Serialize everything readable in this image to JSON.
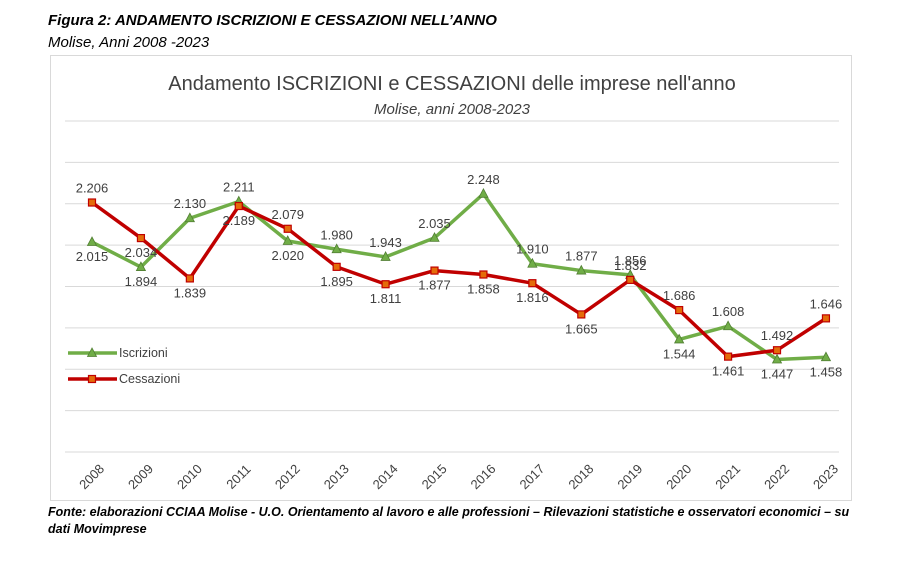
{
  "figure": {
    "title": "Figura 2: ANDAMENTO ISCRIZIONI E CESSAZIONI NELL’ANNO",
    "subtitle": "Molise, Anni 2008 -2023",
    "source": "Fonte: elaborazioni CCIAA Molise - U.O. Orientamento al lavoro e alle professioni – Rilevazioni statistiche e osservatori economici – su dati Movimprese"
  },
  "chart_data": {
    "type": "line",
    "title": "Andamento ISCRIZIONI e CESSAZIONI delle imprese nell'anno",
    "subtitle": "Molise, anni 2008-2023",
    "xlabel": "",
    "ylabel": "",
    "categories": [
      "2008",
      "2009",
      "2010",
      "2011",
      "2012",
      "2013",
      "2014",
      "2015",
      "2016",
      "2017",
      "2018",
      "2019",
      "2020",
      "2021",
      "2022",
      "2023"
    ],
    "series": [
      {
        "name": "Iscrizioni",
        "color": "#70ad47",
        "marker": "triangle",
        "values": [
          2015,
          1894,
          2130,
          2211,
          2020,
          1980,
          1943,
          2035,
          2248,
          1910,
          1877,
          1856,
          1544,
          1608,
          1447,
          1458
        ],
        "labels": [
          "2.015",
          "1.894",
          "2.130",
          "2.211",
          "2.020",
          "1.980",
          "1.943",
          "2.035",
          "2.248",
          "1.910",
          "1.877",
          "1.856",
          "1.544",
          "1.608",
          "1.447",
          "1.458"
        ]
      },
      {
        "name": "Cessazioni",
        "color": "#c00000",
        "marker": "square",
        "values": [
          2206,
          2034,
          1839,
          2189,
          2079,
          1895,
          1811,
          1877,
          1858,
          1816,
          1665,
          1832,
          1686,
          1461,
          1492,
          1646
        ],
        "labels": [
          "2.206",
          "2.034",
          "1.839",
          "2.189",
          "2.079",
          "1.895",
          "1.811",
          "1.877",
          "1.858",
          "1.816",
          "1.665",
          "1.832",
          "1.686",
          "1.461",
          "1.492",
          "1.646"
        ]
      }
    ],
    "ylim": [
      1000,
      2600
    ],
    "grid": true,
    "legend_position": "left"
  }
}
